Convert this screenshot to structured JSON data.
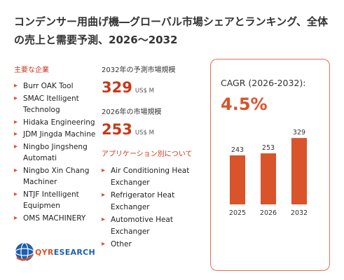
{
  "title": "コンデンサー用曲げ機―グローバル市場シェアとランキング、全体の売上と需要予測、2026～2032",
  "companies": {
    "heading": "主要な企業",
    "items": [
      "Burr OAK Tool",
      "SMAC Itelligent Technolog",
      "Hidaka Engineering",
      "JDM Jingda Machine",
      "Ningbo Jingsheng Automati",
      "Ningbo Xin Chang Machiner",
      "NTJF Intelligent Equipmen",
      "OMS MACHINERY"
    ]
  },
  "forecast": {
    "heading": "2032年の予測市場規模",
    "value": "329",
    "unit": "US$ M"
  },
  "current": {
    "heading": "2026年の市場規模",
    "value": "253",
    "unit": "US$ M"
  },
  "applications": {
    "heading": "アプリケーション別について",
    "items": [
      "Air Conditioning Heat Exchanger",
      "Refrigerator Heat Exchanger",
      "Automotive Heat Exchanger",
      "Other"
    ]
  },
  "cagr": {
    "label": "CAGR (2026-2032):",
    "value": "4.5%"
  },
  "chart_data": {
    "type": "bar",
    "categories": [
      "2025",
      "2026",
      "2032"
    ],
    "values": [
      243,
      253,
      329
    ],
    "ylim": [
      0,
      340
    ],
    "bar_color": "#d9532b"
  },
  "logo": {
    "text_main": "QYR",
    "text_rest": "ESEARCH"
  },
  "colors": {
    "accent": "#d9532b",
    "heading_red": "#c8381a",
    "brand_blue": "#1e5fae"
  },
  "arrow_glyph": "▸"
}
